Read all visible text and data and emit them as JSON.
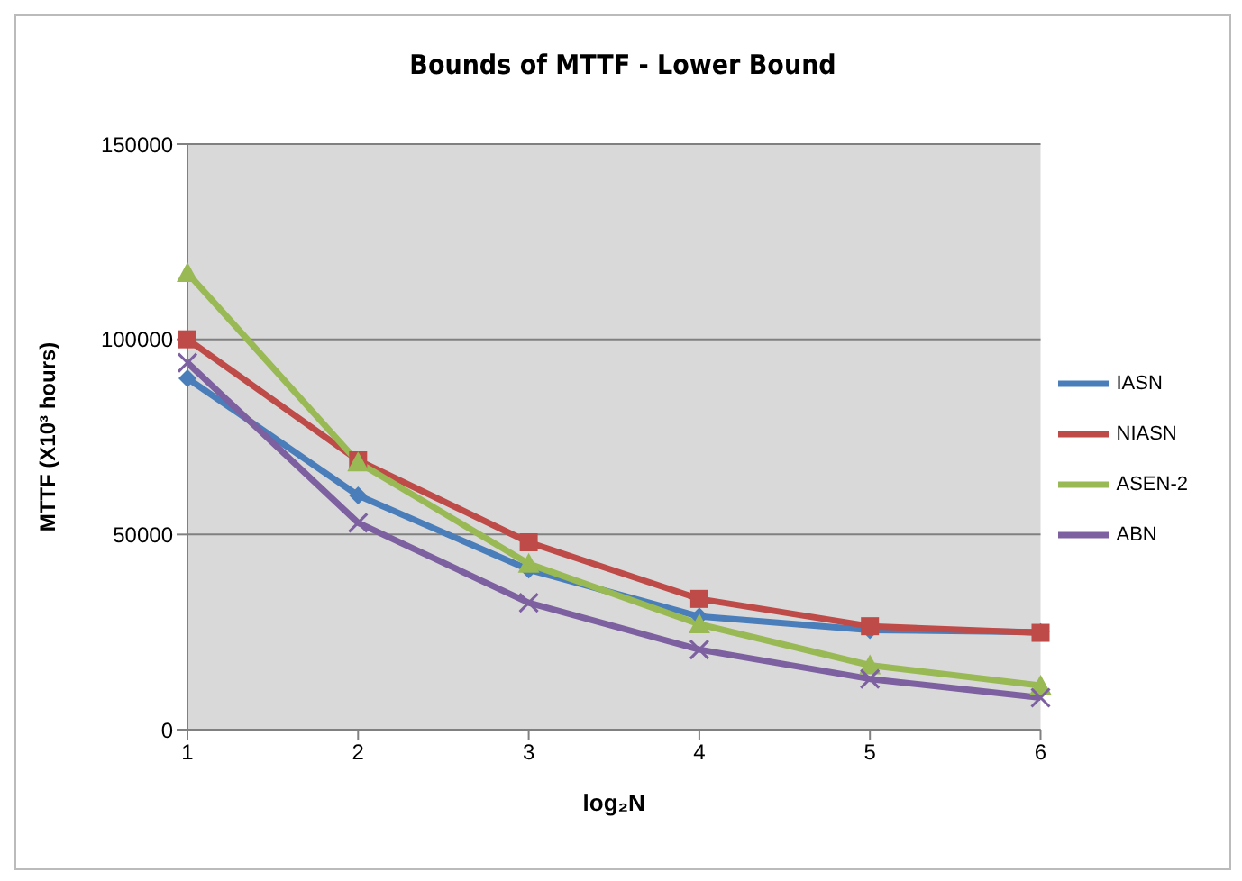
{
  "chart_data": {
    "type": "line",
    "title": "Bounds of MTTF - Lower Bound",
    "xlabel": "log₂N",
    "ylabel": "MTTF (X10³ hours)",
    "categories": [
      "1",
      "2",
      "3",
      "4",
      "5",
      "6"
    ],
    "series": [
      {
        "name": "IASN",
        "color": "#4a7ebb",
        "marker": "diamond",
        "values": [
          90000,
          60000,
          41000,
          29000,
          25500,
          25000
        ]
      },
      {
        "name": "NIASN",
        "color": "#be4b48",
        "marker": "square",
        "values": [
          100000,
          69000,
          48000,
          33500,
          26500,
          24800
        ]
      },
      {
        "name": "ASEN-2",
        "color": "#98b954",
        "marker": "triangle",
        "values": [
          117000,
          68500,
          42500,
          27000,
          16500,
          11300
        ]
      },
      {
        "name": "ABN",
        "color": "#7d60a0",
        "marker": "cross",
        "values": [
          94000,
          53000,
          32500,
          20500,
          13000,
          8200
        ]
      }
    ],
    "ylim": [
      0,
      150000
    ],
    "yticks": [
      0,
      50000,
      100000,
      150000
    ],
    "grid": "y",
    "legend": "right"
  }
}
